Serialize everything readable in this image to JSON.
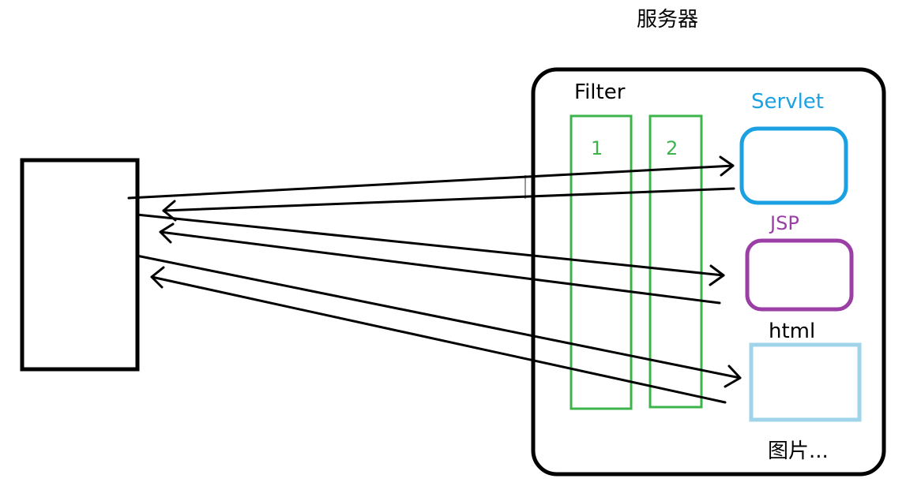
{
  "server": {
    "title": "服务器"
  },
  "filter": {
    "label": "Filter",
    "stages": [
      "1",
      "2"
    ]
  },
  "resources": [
    {
      "key": "servlet",
      "label": "Servlet",
      "color": "#1ba1e2"
    },
    {
      "key": "jsp",
      "label": "JSP",
      "color": "#9b3fa6"
    },
    {
      "key": "html",
      "label": "html",
      "color": "#9fd4ea"
    }
  ],
  "resources_more": "图片...",
  "colors": {
    "ink": "#000000",
    "filter": "#3cb44b",
    "servlet": "#1ba1e2",
    "jsp": "#9b3fa6",
    "html": "#9fd4ea"
  }
}
